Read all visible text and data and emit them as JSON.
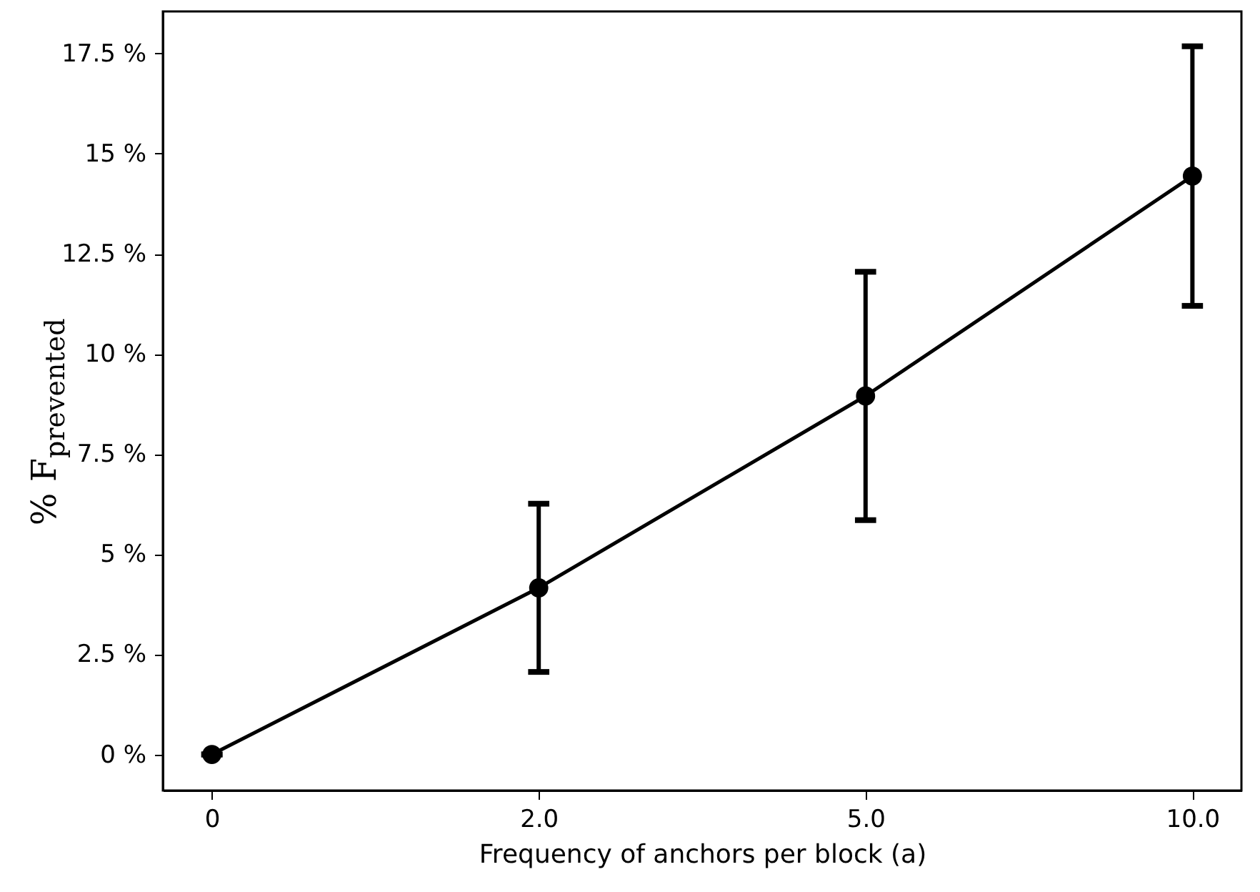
{
  "chart_data": {
    "type": "line",
    "xlabel": "Frequency of anchors per block (a)",
    "ylabel": "% F$_{prevented}$",
    "categories": [
      "0",
      "2.0",
      "5.0",
      "10.0"
    ],
    "series": [
      {
        "color": "#000000",
        "values": [
          0,
          4.16,
          8.95,
          14.44
        ],
        "errors": [
          0,
          2.1,
          3.1,
          3.24
        ]
      }
    ],
    "ylim": [
      -0.9,
      18.55
    ],
    "yticks": [
      {
        "value": 0,
        "label": "0 %"
      },
      {
        "value": 2.5,
        "label": "2.5 %"
      },
      {
        "value": 5,
        "label": "5 %"
      },
      {
        "value": 7.5,
        "label": "7.5 %"
      },
      {
        "value": 10,
        "label": "10 %"
      },
      {
        "value": 12.5,
        "label": "12.5 %"
      },
      {
        "value": 15,
        "label": "15 %"
      },
      {
        "value": 17.5,
        "label": "17.5 %"
      }
    ],
    "grid": false,
    "marker": "circle",
    "line_style": "solid"
  }
}
